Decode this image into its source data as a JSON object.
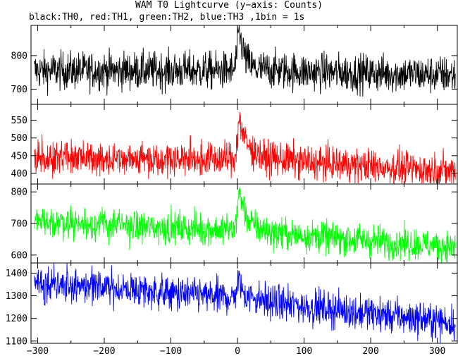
{
  "chart_data": {
    "type": "line",
    "title": "WAM T0 Lightcurve (y−axis: Counts)",
    "subtitle": "black:TH0, red:TH1, green:TH2, blue:TH3 ,1bin = 1s",
    "x_range": [
      -310,
      330
    ],
    "x_ticks": [
      -300,
      -200,
      -100,
      0,
      100,
      200,
      300
    ],
    "x_tick_labels": [
      "−300",
      "−200",
      "−100",
      "0",
      "100",
      "200",
      "300"
    ],
    "panels": [
      {
        "name": "TH0",
        "color": "#000000",
        "y_range": [
          655,
          890
        ],
        "y_ticks": [
          700,
          800
        ],
        "trend": [
          [
            -310,
            755
          ],
          [
            -5,
            755
          ],
          [
            0,
            820
          ],
          [
            2,
            870
          ],
          [
            5,
            845
          ],
          [
            12,
            790
          ],
          [
            25,
            760
          ],
          [
            100,
            752
          ],
          [
            330,
            742
          ]
        ],
        "noise": 28
      },
      {
        "name": "TH1",
        "color": "#ff0000",
        "y_range": [
          370,
          595
        ],
        "y_ticks": [
          400,
          450,
          500,
          550
        ],
        "trend": [
          [
            -310,
            445
          ],
          [
            -5,
            440
          ],
          [
            0,
            500
          ],
          [
            3,
            560
          ],
          [
            8,
            510
          ],
          [
            18,
            470
          ],
          [
            40,
            445
          ],
          [
            100,
            432
          ],
          [
            330,
            405
          ]
        ],
        "noise": 24
      },
      {
        "name": "TH2",
        "color": "#00ff00",
        "y_range": [
          575,
          825
        ],
        "y_ticks": [
          600,
          700,
          800
        ],
        "trend": [
          [
            -310,
            710
          ],
          [
            -150,
            690
          ],
          [
            -5,
            680
          ],
          [
            0,
            740
          ],
          [
            3,
            800
          ],
          [
            8,
            760
          ],
          [
            18,
            700
          ],
          [
            50,
            670
          ],
          [
            330,
            625
          ]
        ],
        "noise": 25
      },
      {
        "name": "TH3",
        "color": "#0000ff",
        "y_range": [
          1090,
          1445
        ],
        "y_ticks": [
          1100,
          1200,
          1300,
          1400
        ],
        "trend": [
          [
            -310,
            1365
          ],
          [
            -100,
            1310
          ],
          [
            -5,
            1290
          ],
          [
            0,
            1350
          ],
          [
            3,
            1370
          ],
          [
            8,
            1310
          ],
          [
            50,
            1270
          ],
          [
            330,
            1180
          ]
        ],
        "noise": 38
      }
    ]
  }
}
